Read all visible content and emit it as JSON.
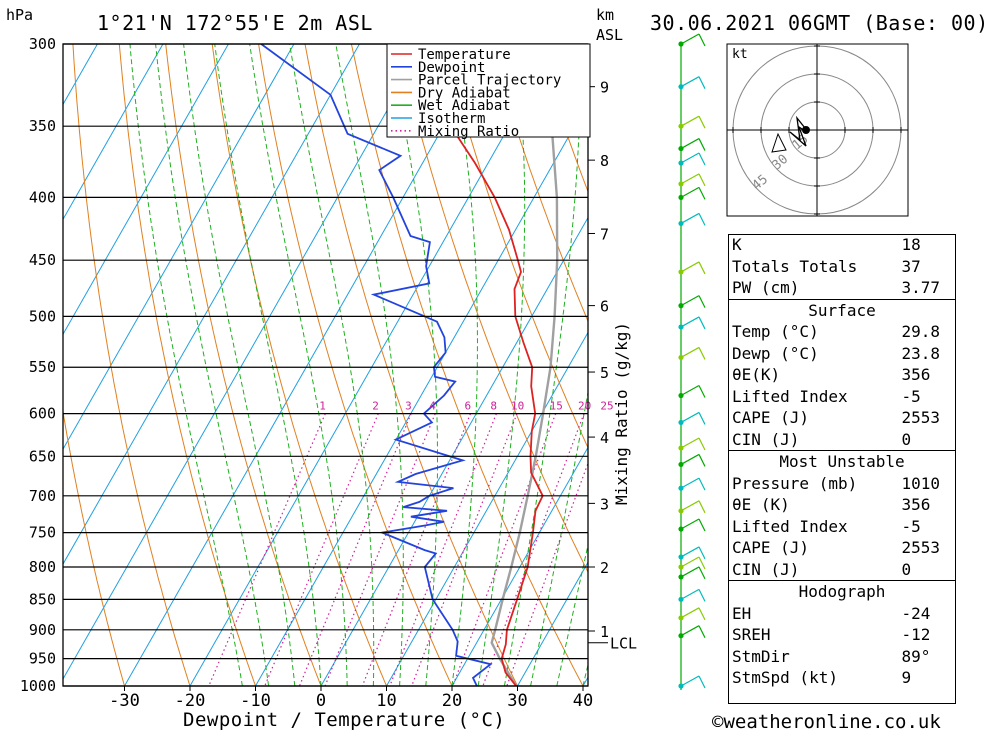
{
  "header": {
    "location": "1°21'N  172°55'E  2m  ASL",
    "datetime": "30.06.2021  06GMT  (Base:  00)",
    "pressure_unit": "hPa",
    "height_unit": "km",
    "height_ref": "ASL"
  },
  "chart_data": {
    "type": "skew-t",
    "xlabel": "Dewpoint / Temperature (°C)",
    "ylabel": "hPa",
    "mixing_ratio_label": "Mixing Ratio (g/kg)",
    "pressure_levels": [
      300,
      350,
      400,
      450,
      500,
      550,
      600,
      650,
      700,
      750,
      800,
      850,
      900,
      950,
      1000
    ],
    "temperature_ticks": [
      -30,
      -20,
      -10,
      0,
      10,
      20,
      30,
      40
    ],
    "height_ticks": [
      {
        "km": "1",
        "p": 902
      },
      {
        "km": "2",
        "p": 800
      },
      {
        "km": "3",
        "p": 710
      },
      {
        "km": "4",
        "p": 627
      },
      {
        "km": "5",
        "p": 555
      },
      {
        "km": "6",
        "p": 490
      },
      {
        "km": "7",
        "p": 428
      },
      {
        "km": "8",
        "p": 373
      },
      {
        "km": "9",
        "p": 325
      }
    ],
    "lcl": {
      "label": "LCL",
      "p": 922
    },
    "mixing_ratio_lines": [
      "1",
      "2",
      "3",
      "4",
      "6",
      "8",
      "10",
      "15",
      "20",
      "25"
    ],
    "legend": {
      "position": "top-right",
      "entries": [
        {
          "name": "Temperature",
          "color": "#dd2222",
          "style": "solid"
        },
        {
          "name": "Dewpoint",
          "color": "#2244dd",
          "style": "solid"
        },
        {
          "name": "Parcel Trajectory",
          "color": "#a0a0a0",
          "style": "solid"
        },
        {
          "name": "Dry Adiabat",
          "color": "#e08020",
          "style": "solid"
        },
        {
          "name": "Wet Adiabat",
          "color": "#20b020",
          "style": "solid"
        },
        {
          "name": "Isotherm",
          "color": "#20a0e0",
          "style": "solid"
        },
        {
          "name": "Mixing Ratio",
          "color": "#cc2299",
          "style": "dotted"
        }
      ]
    },
    "series": [
      {
        "name": "Temperature",
        "points": [
          [
            1000,
            29.8
          ],
          [
            975,
            27
          ],
          [
            950,
            25.2
          ],
          [
            925,
            24.6
          ],
          [
            900,
            23.5
          ],
          [
            850,
            22.4
          ],
          [
            800,
            21.2
          ],
          [
            750,
            19.0
          ],
          [
            720,
            17.5
          ],
          [
            700,
            17.3
          ],
          [
            670,
            13.5
          ],
          [
            650,
            12.0
          ],
          [
            620,
            10.0
          ],
          [
            600,
            9.0
          ],
          [
            570,
            6.0
          ],
          [
            550,
            4.5
          ],
          [
            525,
            1.0
          ],
          [
            500,
            -2.5
          ],
          [
            475,
            -5.0
          ],
          [
            460,
            -5.5
          ],
          [
            450,
            -7.0
          ],
          [
            425,
            -11.0
          ],
          [
            400,
            -16.0
          ],
          [
            375,
            -22.0
          ],
          [
            355,
            -27.5
          ],
          [
            350,
            -29.0
          ],
          [
            320,
            -34.0
          ],
          [
            300,
            -37.0
          ]
        ]
      },
      {
        "name": "Dewpoint",
        "points": [
          [
            1000,
            23.8
          ],
          [
            985,
            22.5
          ],
          [
            960,
            24.0
          ],
          [
            945,
            18.0
          ],
          [
            920,
            17.0
          ],
          [
            900,
            15.2
          ],
          [
            850,
            9.5
          ],
          [
            800,
            5.5
          ],
          [
            780,
            6.0
          ],
          [
            775,
            4.0
          ],
          [
            750,
            -4.0
          ],
          [
            740,
            2.0
          ],
          [
            735,
            4.5
          ],
          [
            728,
            -1.0
          ],
          [
            720,
            4.0
          ],
          [
            715,
            -3.0
          ],
          [
            708,
            -1.0
          ],
          [
            700,
            0.0
          ],
          [
            690,
            3.0
          ],
          [
            682,
            -6.0
          ],
          [
            672,
            -4.0
          ],
          [
            655,
            2.0
          ],
          [
            630,
            -10.0
          ],
          [
            610,
            -6.0
          ],
          [
            600,
            -8.0
          ],
          [
            580,
            -6.5
          ],
          [
            565,
            -6.0
          ],
          [
            560,
            -9.5
          ],
          [
            550,
            -10.5
          ],
          [
            535,
            -10.0
          ],
          [
            520,
            -11.5
          ],
          [
            505,
            -14.0
          ],
          [
            480,
            -26.0
          ],
          [
            470,
            -18.5
          ],
          [
            455,
            -20.5
          ],
          [
            435,
            -22.0
          ],
          [
            430,
            -25.5
          ],
          [
            400,
            -31.5
          ],
          [
            380,
            -36.0
          ],
          [
            370,
            -34.0
          ],
          [
            355,
            -44.0
          ],
          [
            330,
            -50.0
          ],
          [
            300,
            -65.0
          ]
        ]
      },
      {
        "name": "Parcel Trajectory",
        "points": [
          [
            1000,
            29.8
          ],
          [
            950,
            24.9
          ],
          [
            922,
            22.3
          ],
          [
            900,
            21.7
          ],
          [
            850,
            20.2
          ],
          [
            800,
            18.7
          ],
          [
            750,
            17.0
          ],
          [
            700,
            15.0
          ],
          [
            650,
            12.8
          ],
          [
            600,
            10.2
          ],
          [
            550,
            7.3
          ],
          [
            500,
            3.5
          ],
          [
            450,
            -1.0
          ],
          [
            400,
            -6.5
          ],
          [
            350,
            -13.5
          ],
          [
            330,
            -16.5
          ]
        ]
      }
    ]
  },
  "winds": {
    "unit": "kt",
    "hodograph_rings": [
      "15",
      "30",
      "45"
    ],
    "staff_levels": [
      300,
      325,
      350,
      365,
      375,
      390,
      400,
      420,
      460,
      490,
      510,
      540,
      580,
      610,
      640,
      660,
      690,
      720,
      745,
      785,
      800,
      815,
      850,
      880,
      910,
      1000
    ]
  },
  "indices": {
    "general": [
      {
        "label": "K",
        "value": "18"
      },
      {
        "label": "Totals Totals",
        "value": "37"
      },
      {
        "label": "PW (cm)",
        "value": "3.77"
      }
    ],
    "surface": {
      "title": "Surface",
      "rows": [
        {
          "label": "Temp (°C)",
          "value": "29.8"
        },
        {
          "label": "Dewp (°C)",
          "value": "23.8"
        },
        {
          "label": "θE(K)",
          "value": "356"
        },
        {
          "label": "Lifted Index",
          "value": "-5"
        },
        {
          "label": "CAPE (J)",
          "value": "2553"
        },
        {
          "label": "CIN (J)",
          "value": "0"
        }
      ]
    },
    "most_unstable": {
      "title": "Most Unstable",
      "rows": [
        {
          "label": "Pressure (mb)",
          "value": "1010"
        },
        {
          "label": "θE (K)",
          "value": "356"
        },
        {
          "label": "Lifted Index",
          "value": "-5"
        },
        {
          "label": "CAPE (J)",
          "value": "2553"
        },
        {
          "label": "CIN (J)",
          "value": "0"
        }
      ]
    },
    "hodograph": {
      "title": "Hodograph",
      "rows": [
        {
          "label": "EH",
          "value": "-24"
        },
        {
          "label": "SREH",
          "value": "-12"
        },
        {
          "label": "StmDir",
          "value": "89°"
        },
        {
          "label": "StmSpd (kt)",
          "value": "9"
        }
      ]
    }
  },
  "credit": "©weatheronline.co.uk"
}
